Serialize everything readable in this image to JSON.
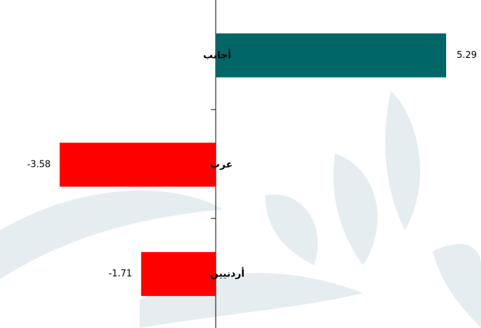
{
  "chart_data": {
    "type": "bar",
    "orientation": "horizontal",
    "categories": [
      "أجانب",
      "عرب",
      "أردنيين"
    ],
    "values": [
      5.29,
      -3.58,
      -1.71
    ],
    "colors": [
      "#006666",
      "#ff0000",
      "#ff0000"
    ],
    "xlim": [
      -4.95,
      6.09
    ]
  }
}
